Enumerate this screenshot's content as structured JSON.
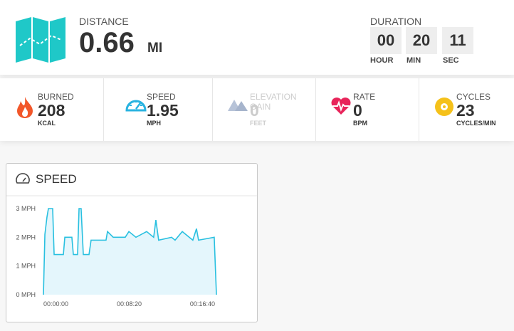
{
  "summary": {
    "distance": {
      "label": "DISTANCE",
      "value": "0.66",
      "unit": "MI"
    },
    "duration": {
      "label": "DURATION",
      "parts": [
        {
          "value": "00",
          "unit": "HOUR"
        },
        {
          "value": "20",
          "unit": "MIN"
        },
        {
          "value": "11",
          "unit": "SEC"
        }
      ]
    }
  },
  "stats": [
    {
      "label": "BURNED",
      "value": "208",
      "unit": "KCAL"
    },
    {
      "label": "SPEED",
      "value": "1.95",
      "unit": "MPH"
    },
    {
      "label": "ELEVATION GAIN",
      "value": "0",
      "unit": "FEET"
    },
    {
      "label": "RATE",
      "value": "0",
      "unit": "BPM"
    },
    {
      "label": "CYCLES",
      "value": "23",
      "unit": "CYCLES/MIN"
    }
  ],
  "chart_data": {
    "type": "line",
    "title": "SPEED",
    "color": "#29c0e0",
    "area_color": "#e4f6fc",
    "x": [
      0,
      10,
      24,
      34,
      63,
      73,
      136,
      146,
      194,
      204,
      233,
      243,
      257,
      272,
      311,
      325,
      427,
      437,
      476,
      558,
      583,
      631,
      704,
      752,
      767,
      786,
      874,
      898,
      947,
      995,
      1019,
      1044,
      1058,
      1165,
      1180
    ],
    "values": [
      0,
      2.1,
      2.7,
      3,
      3,
      1.4,
      1.4,
      2,
      2,
      1.4,
      1.4,
      3,
      3,
      1.4,
      1.4,
      1.9,
      1.9,
      2.2,
      2,
      2,
      2.2,
      2,
      2.2,
      2,
      2.6,
      1.9,
      2,
      1.9,
      2.2,
      2,
      1.9,
      2.3,
      1.9,
      2,
      0
    ],
    "xlim": [
      0,
      1180
    ],
    "xticks": [
      {
        "value": 0,
        "label": "00:00:00"
      },
      {
        "value": 500,
        "label": "00:08:20"
      },
      {
        "value": 1000,
        "label": "00:16:40"
      }
    ],
    "ylim": [
      0,
      3
    ],
    "yticks": [
      {
        "value": 0,
        "label": "0 MPH"
      },
      {
        "value": 1,
        "label": "1 MPH"
      },
      {
        "value": 2,
        "label": "2 MPH"
      },
      {
        "value": 3,
        "label": "3 MPH"
      }
    ]
  }
}
